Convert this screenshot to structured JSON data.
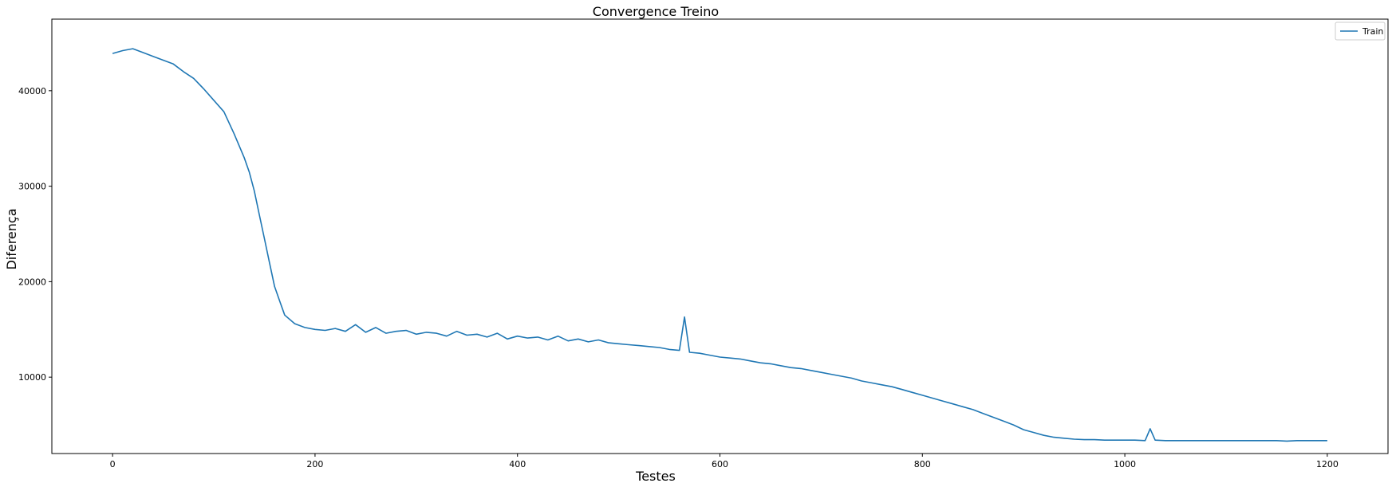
{
  "chart_data": {
    "type": "line",
    "title": "Convergence Treino",
    "xlabel": "Testes",
    "ylabel": "Diferença",
    "xlim": [
      -60,
      1260
    ],
    "ylim": [
      2000,
      47500
    ],
    "x_ticks": [
      0,
      200,
      400,
      600,
      800,
      1000,
      1200
    ],
    "y_ticks": [
      10000,
      20000,
      30000,
      40000
    ],
    "grid": false,
    "legend_position": "top-right",
    "line_color": "#1f77b4",
    "series": [
      {
        "name": "Train",
        "x": [
          0,
          10,
          20,
          30,
          40,
          50,
          60,
          70,
          80,
          90,
          100,
          110,
          120,
          130,
          135,
          140,
          145,
          150,
          155,
          160,
          165,
          170,
          180,
          190,
          200,
          210,
          220,
          230,
          240,
          250,
          260,
          270,
          280,
          290,
          300,
          310,
          320,
          330,
          340,
          350,
          360,
          370,
          380,
          390,
          400,
          410,
          420,
          430,
          440,
          450,
          460,
          470,
          480,
          490,
          500,
          510,
          520,
          530,
          540,
          550,
          560,
          565,
          570,
          580,
          590,
          600,
          610,
          620,
          630,
          640,
          650,
          660,
          670,
          680,
          690,
          700,
          710,
          720,
          730,
          740,
          750,
          760,
          770,
          780,
          790,
          800,
          810,
          820,
          830,
          840,
          850,
          860,
          870,
          880,
          890,
          900,
          910,
          920,
          930,
          940,
          950,
          960,
          970,
          980,
          990,
          1000,
          1010,
          1020,
          1025,
          1030,
          1040,
          1050,
          1060,
          1070,
          1080,
          1090,
          1100,
          1110,
          1120,
          1130,
          1140,
          1150,
          1160,
          1170,
          1180,
          1190,
          1200
        ],
        "y": [
          43900,
          44200,
          44400,
          44000,
          43600,
          43200,
          42800,
          42000,
          41300,
          40200,
          39000,
          37800,
          35500,
          33000,
          31500,
          29500,
          27000,
          24500,
          22000,
          19500,
          18000,
          16500,
          15600,
          15200,
          15000,
          14900,
          15100,
          14800,
          15500,
          14700,
          15200,
          14600,
          14800,
          14900,
          14500,
          14700,
          14600,
          14300,
          14800,
          14400,
          14500,
          14200,
          14600,
          14000,
          14300,
          14100,
          14200,
          13900,
          14300,
          13800,
          14000,
          13700,
          13900,
          13600,
          13500,
          13400,
          13300,
          13200,
          13100,
          12900,
          12800,
          16300,
          12600,
          12500,
          12300,
          12100,
          12000,
          11900,
          11700,
          11500,
          11400,
          11200,
          11000,
          10900,
          10700,
          10500,
          10300,
          10100,
          9900,
          9600,
          9400,
          9200,
          9000,
          8700,
          8400,
          8100,
          7800,
          7500,
          7200,
          6900,
          6600,
          6200,
          5800,
          5400,
          5000,
          4500,
          4200,
          3900,
          3700,
          3600,
          3500,
          3450,
          3450,
          3400,
          3400,
          3400,
          3400,
          3350,
          4600,
          3400,
          3350,
          3350,
          3350,
          3350,
          3350,
          3350,
          3350,
          3350,
          3350,
          3350,
          3350,
          3350,
          3300,
          3350,
          3350,
          3350,
          3350
        ]
      }
    ]
  }
}
